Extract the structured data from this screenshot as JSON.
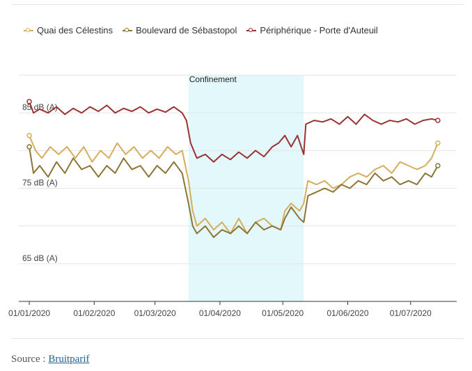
{
  "colors": {
    "quai": "#d6ad5c",
    "boulevard": "#8c7434",
    "periph": "#9c3030",
    "confinement": "#e2f8fb"
  },
  "source": {
    "prefix": "Source :",
    "link": "Bruitparif"
  },
  "chart_data": {
    "type": "line",
    "x_type": "date",
    "xlim": [
      "2019-12-27",
      "2020-07-23"
    ],
    "ylim": [
      60,
      90
    ],
    "y_ticks": [
      {
        "value": 85,
        "label": "85 dB (A)"
      },
      {
        "value": 75,
        "label": "75 dB (A)"
      },
      {
        "value": 65,
        "label": "65 dB (A)"
      }
    ],
    "x_ticks": [
      {
        "value": "2020-01-01",
        "label": "01/01/2020"
      },
      {
        "value": "2020-02-01",
        "label": "01/02/2020"
      },
      {
        "value": "2020-03-01",
        "label": "01/03/2020"
      },
      {
        "value": "2020-04-01",
        "label": "01/04/2020"
      },
      {
        "value": "2020-05-01",
        "label": "01/05/2020"
      },
      {
        "value": "2020-06-01",
        "label": "01/06/2020"
      },
      {
        "value": "2020-07-01",
        "label": "01/07/2020"
      }
    ],
    "annotations": [
      {
        "type": "band",
        "start": "2020-03-17",
        "end": "2020-05-11",
        "label": "Confinement"
      }
    ],
    "series": [
      {
        "name": "Quai des Célestins",
        "points": [
          [
            "2020-01-01",
            82
          ],
          [
            "2020-01-04",
            80
          ],
          [
            "2020-01-07",
            79
          ],
          [
            "2020-01-11",
            80.5
          ],
          [
            "2020-01-15",
            79.5
          ],
          [
            "2020-01-19",
            80.5
          ],
          [
            "2020-01-23",
            79
          ],
          [
            "2020-01-27",
            80.5
          ],
          [
            "2020-01-31",
            78.5
          ],
          [
            "2020-02-04",
            80
          ],
          [
            "2020-02-08",
            79
          ],
          [
            "2020-02-12",
            81
          ],
          [
            "2020-02-16",
            79.5
          ],
          [
            "2020-02-20",
            80.5
          ],
          [
            "2020-02-24",
            79
          ],
          [
            "2020-02-28",
            80
          ],
          [
            "2020-03-03",
            79
          ],
          [
            "2020-03-07",
            80.5
          ],
          [
            "2020-03-11",
            79.5
          ],
          [
            "2020-03-14",
            80
          ],
          [
            "2020-03-17",
            76
          ],
          [
            "2020-03-19",
            72
          ],
          [
            "2020-03-21",
            70
          ],
          [
            "2020-03-25",
            71
          ],
          [
            "2020-03-29",
            69.5
          ],
          [
            "2020-04-02",
            70.5
          ],
          [
            "2020-04-06",
            69
          ],
          [
            "2020-04-10",
            71
          ],
          [
            "2020-04-14",
            69
          ],
          [
            "2020-04-18",
            70.5
          ],
          [
            "2020-04-22",
            71
          ],
          [
            "2020-04-26",
            70
          ],
          [
            "2020-04-30",
            69.5
          ],
          [
            "2020-05-02",
            72
          ],
          [
            "2020-05-05",
            73
          ],
          [
            "2020-05-09",
            72
          ],
          [
            "2020-05-11",
            73
          ],
          [
            "2020-05-13",
            76
          ],
          [
            "2020-05-17",
            75.5
          ],
          [
            "2020-05-21",
            76
          ],
          [
            "2020-05-25",
            75
          ],
          [
            "2020-05-29",
            75.5
          ],
          [
            "2020-06-02",
            76.5
          ],
          [
            "2020-06-06",
            77
          ],
          [
            "2020-06-10",
            76.5
          ],
          [
            "2020-06-14",
            77.5
          ],
          [
            "2020-06-18",
            78
          ],
          [
            "2020-06-22",
            77
          ],
          [
            "2020-06-26",
            78.5
          ],
          [
            "2020-06-30",
            78
          ],
          [
            "2020-07-04",
            77.5
          ],
          [
            "2020-07-08",
            78
          ],
          [
            "2020-07-11",
            79
          ],
          [
            "2020-07-14",
            81
          ]
        ]
      },
      {
        "name": "Boulevard de Sébastopol",
        "points": [
          [
            "2020-01-01",
            80.5
          ],
          [
            "2020-01-03",
            77
          ],
          [
            "2020-01-06",
            78
          ],
          [
            "2020-01-10",
            76.5
          ],
          [
            "2020-01-14",
            78.5
          ],
          [
            "2020-01-18",
            77
          ],
          [
            "2020-01-22",
            79
          ],
          [
            "2020-01-26",
            77.5
          ],
          [
            "2020-01-30",
            78
          ],
          [
            "2020-02-03",
            76.5
          ],
          [
            "2020-02-07",
            78
          ],
          [
            "2020-02-11",
            77
          ],
          [
            "2020-02-15",
            79
          ],
          [
            "2020-02-19",
            77.5
          ],
          [
            "2020-02-23",
            78
          ],
          [
            "2020-02-27",
            76.5
          ],
          [
            "2020-03-02",
            78
          ],
          [
            "2020-03-06",
            77
          ],
          [
            "2020-03-10",
            78.5
          ],
          [
            "2020-03-14",
            77
          ],
          [
            "2020-03-17",
            73
          ],
          [
            "2020-03-19",
            70
          ],
          [
            "2020-03-21",
            69
          ],
          [
            "2020-03-25",
            70
          ],
          [
            "2020-03-29",
            68.5
          ],
          [
            "2020-04-02",
            69.5
          ],
          [
            "2020-04-06",
            69
          ],
          [
            "2020-04-10",
            70
          ],
          [
            "2020-04-14",
            69
          ],
          [
            "2020-04-18",
            70.5
          ],
          [
            "2020-04-22",
            69.5
          ],
          [
            "2020-04-26",
            70
          ],
          [
            "2020-04-30",
            69.5
          ],
          [
            "2020-05-02",
            71
          ],
          [
            "2020-05-05",
            72.5
          ],
          [
            "2020-05-09",
            71
          ],
          [
            "2020-05-11",
            70.5
          ],
          [
            "2020-05-13",
            74
          ],
          [
            "2020-05-17",
            74.5
          ],
          [
            "2020-05-21",
            75
          ],
          [
            "2020-05-25",
            74.5
          ],
          [
            "2020-05-29",
            75.5
          ],
          [
            "2020-06-02",
            75
          ],
          [
            "2020-06-06",
            76
          ],
          [
            "2020-06-10",
            75.5
          ],
          [
            "2020-06-14",
            77
          ],
          [
            "2020-06-18",
            76
          ],
          [
            "2020-06-22",
            76.5
          ],
          [
            "2020-06-26",
            75.5
          ],
          [
            "2020-06-30",
            76
          ],
          [
            "2020-07-04",
            75.5
          ],
          [
            "2020-07-08",
            77
          ],
          [
            "2020-07-11",
            76.5
          ],
          [
            "2020-07-14",
            78
          ]
        ]
      },
      {
        "name": "Périphérique - Porte d'Auteuil",
        "points": [
          [
            "2020-01-01",
            86.5
          ],
          [
            "2020-01-03",
            85
          ],
          [
            "2020-01-06",
            85.5
          ],
          [
            "2020-01-10",
            85
          ],
          [
            "2020-01-14",
            85.8
          ],
          [
            "2020-01-18",
            84.8
          ],
          [
            "2020-01-22",
            85.6
          ],
          [
            "2020-01-26",
            85
          ],
          [
            "2020-01-30",
            85.8
          ],
          [
            "2020-02-03",
            85.2
          ],
          [
            "2020-02-07",
            86
          ],
          [
            "2020-02-11",
            85
          ],
          [
            "2020-02-15",
            85.6
          ],
          [
            "2020-02-19",
            85.2
          ],
          [
            "2020-02-23",
            85.8
          ],
          [
            "2020-02-27",
            85
          ],
          [
            "2020-03-02",
            85.5
          ],
          [
            "2020-03-06",
            85.1
          ],
          [
            "2020-03-10",
            85.8
          ],
          [
            "2020-03-14",
            85
          ],
          [
            "2020-03-16",
            84
          ],
          [
            "2020-03-18",
            81
          ],
          [
            "2020-03-21",
            79
          ],
          [
            "2020-03-25",
            79.5
          ],
          [
            "2020-03-29",
            78.5
          ],
          [
            "2020-04-02",
            79.5
          ],
          [
            "2020-04-06",
            78.8
          ],
          [
            "2020-04-10",
            79.8
          ],
          [
            "2020-04-14",
            79
          ],
          [
            "2020-04-18",
            80
          ],
          [
            "2020-04-22",
            79.2
          ],
          [
            "2020-04-26",
            80.5
          ],
          [
            "2020-04-29",
            81
          ],
          [
            "2020-05-02",
            82
          ],
          [
            "2020-05-05",
            80.5
          ],
          [
            "2020-05-08",
            82
          ],
          [
            "2020-05-11",
            79.5
          ],
          [
            "2020-05-12",
            83.5
          ],
          [
            "2020-05-16",
            84
          ],
          [
            "2020-05-20",
            83.8
          ],
          [
            "2020-05-24",
            84.2
          ],
          [
            "2020-05-28",
            83.5
          ],
          [
            "2020-06-01",
            84.5
          ],
          [
            "2020-06-05",
            83.5
          ],
          [
            "2020-06-09",
            84.8
          ],
          [
            "2020-06-13",
            84
          ],
          [
            "2020-06-17",
            83.5
          ],
          [
            "2020-06-21",
            84
          ],
          [
            "2020-06-25",
            83.8
          ],
          [
            "2020-06-29",
            84.2
          ],
          [
            "2020-07-03",
            83.5
          ],
          [
            "2020-07-07",
            84
          ],
          [
            "2020-07-11",
            84.2
          ],
          [
            "2020-07-14",
            84
          ]
        ]
      }
    ]
  }
}
